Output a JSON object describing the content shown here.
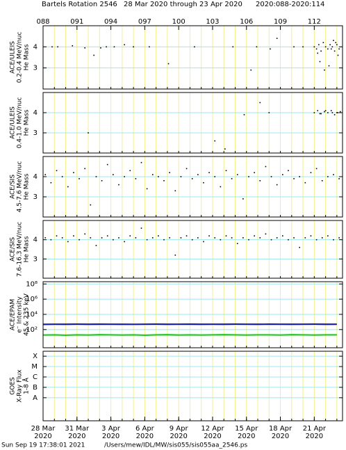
{
  "header": {
    "title": "Bartels Rotation 2546",
    "range": "28 Mar 2020 through 23 Apr 2020",
    "doy": "2020:088-2020:114"
  },
  "x_axis": {
    "xlim": [
      88,
      114.5
    ],
    "xticks": [
      88,
      89,
      90,
      91,
      92,
      93,
      94,
      95,
      96,
      97,
      98,
      99,
      100,
      101,
      102,
      103,
      104,
      105,
      106,
      107,
      108,
      109,
      110,
      111,
      112,
      113,
      114
    ],
    "top_labels": [
      {
        "value": 88,
        "label": "088"
      },
      {
        "value": 91,
        "label": "091"
      },
      {
        "value": 94,
        "label": "094"
      },
      {
        "value": 97,
        "label": "097"
      },
      {
        "value": 100,
        "label": "100"
      },
      {
        "value": 103,
        "label": "103"
      },
      {
        "value": 106,
        "label": "106"
      },
      {
        "value": 109,
        "label": "109"
      },
      {
        "value": 112,
        "label": "112"
      }
    ],
    "bottom_labels": [
      {
        "value": 88,
        "label": "28 Mar",
        "year": "2020"
      },
      {
        "value": 91,
        "label": "31 Mar",
        "year": "2020"
      },
      {
        "value": 94,
        "label": "3 Apr",
        "year": "2020"
      },
      {
        "value": 97,
        "label": "6 Apr",
        "year": "2020"
      },
      {
        "value": 100,
        "label": "9 Apr",
        "year": "2020"
      },
      {
        "value": 103,
        "label": "12 Apr",
        "year": "2020"
      },
      {
        "value": 106,
        "label": "15 Apr",
        "year": "2020"
      },
      {
        "value": 109,
        "label": "18 Apr",
        "year": "2020"
      },
      {
        "value": 112,
        "label": "21 Apr",
        "year": "2020"
      }
    ]
  },
  "chart_data": [
    {
      "type": "scatter",
      "ylabel": [
        "ACE/ULEIS",
        "0.2-0.4 MeV/nuc",
        "He Mass"
      ],
      "ylim": [
        2,
        5
      ],
      "yticks": [
        3,
        4
      ],
      "color": "#000000",
      "x": [
        88.8,
        89.3,
        90.6,
        91.7,
        92.5,
        93.1,
        93.6,
        94.3,
        95.2,
        96.0,
        97.4,
        99.1,
        101.4,
        104.8,
        106.4,
        106.9,
        108.1,
        108.7,
        110.2,
        111.0,
        112.0,
        112.2,
        112.4,
        112.6,
        112.8,
        113.0,
        113.2,
        113.4,
        113.6,
        113.8,
        114.0,
        114.2,
        112.5,
        112.9,
        113.3,
        113.7,
        114.1,
        112.3,
        113.5,
        113.9
      ],
      "values": [
        4.0,
        4.0,
        4.05,
        3.95,
        3.6,
        3.95,
        4.0,
        4.0,
        4.1,
        4.0,
        4.0,
        3.2,
        4.0,
        4.0,
        2.9,
        4.0,
        3.9,
        4.4,
        4.0,
        4.0,
        4.0,
        3.9,
        4.1,
        3.8,
        4.2,
        4.0,
        3.9,
        4.1,
        4.0,
        3.8,
        4.1,
        3.9,
        3.3,
        2.9,
        3.1,
        4.3,
        3.6,
        3.7,
        3.9,
        4.2
      ]
    },
    {
      "type": "scatter",
      "ylabel": [
        "ACE/ULEIS",
        "0.4-1.0 MeV/nuc",
        "He Mass"
      ],
      "ylim": [
        2,
        5
      ],
      "yticks": [
        3,
        4
      ],
      "color": "#000000",
      "x": [
        92.0,
        103.2,
        104.1,
        105.8,
        107.2,
        108.0,
        112.0,
        112.3,
        112.6,
        112.9,
        113.2,
        113.5,
        113.8,
        114.1,
        114.3,
        112.5,
        113.0,
        113.6,
        114.0
      ],
      "values": [
        3.0,
        2.6,
        2.2,
        3.9,
        4.5,
        4.0,
        4.0,
        4.1,
        3.95,
        4.05,
        4.0,
        4.1,
        3.9,
        4.0,
        4.05,
        3.95,
        4.1,
        4.0,
        4.0
      ]
    },
    {
      "type": "scatter",
      "ylabel": [
        "ACE/SIS",
        "4.5-7.6 MeV/nuc",
        "He Mass"
      ],
      "ylim": [
        2,
        5
      ],
      "yticks": [
        3,
        4
      ],
      "color": "#000000",
      "x": [
        88.2,
        88.7,
        89.2,
        89.7,
        90.2,
        90.7,
        91.2,
        91.7,
        92.2,
        92.7,
        93.2,
        93.7,
        94.2,
        94.7,
        95.2,
        95.7,
        96.2,
        96.7,
        97.2,
        97.7,
        98.2,
        98.7,
        99.2,
        99.7,
        100.2,
        100.7,
        101.2,
        101.7,
        102.2,
        102.7,
        103.2,
        103.7,
        104.2,
        104.7,
        105.2,
        105.7,
        106.2,
        106.7,
        107.2,
        107.7,
        108.2,
        108.7,
        109.2,
        109.7,
        110.2,
        110.7,
        111.2,
        111.7,
        112.2,
        112.7,
        113.2,
        113.7,
        114.2
      ],
      "values": [
        4.1,
        3.7,
        4.3,
        4.0,
        3.5,
        4.2,
        3.9,
        4.4,
        2.6,
        4.0,
        3.8,
        4.6,
        4.1,
        3.6,
        4.0,
        4.3,
        3.9,
        4.7,
        3.4,
        4.1,
        4.0,
        3.8,
        4.2,
        3.3,
        4.0,
        4.4,
        3.9,
        4.1,
        3.7,
        4.2,
        4.0,
        3.5,
        4.3,
        3.9,
        4.1,
        2.9,
        4.0,
        4.2,
        3.8,
        4.5,
        4.0,
        3.6,
        4.1,
        4.3,
        3.9,
        4.0,
        3.7,
        4.2,
        4.4,
        3.8,
        4.0,
        4.1,
        3.9
      ]
    },
    {
      "type": "scatter",
      "ylabel": [
        "ACE/SIS",
        "7.6-16.3 MeV/nuc",
        "He Mass"
      ],
      "ylim": [
        2,
        5
      ],
      "yticks": [
        3,
        4
      ],
      "color": "#000000",
      "x": [
        88.2,
        88.7,
        89.2,
        89.7,
        90.2,
        90.7,
        91.2,
        91.7,
        92.2,
        92.7,
        93.2,
        93.7,
        94.2,
        94.7,
        95.2,
        95.7,
        96.2,
        96.7,
        97.2,
        97.7,
        98.2,
        98.7,
        99.2,
        99.7,
        100.2,
        100.7,
        101.2,
        101.7,
        102.2,
        102.7,
        103.2,
        103.7,
        104.2,
        104.7,
        105.2,
        105.7,
        106.2,
        106.7,
        107.2,
        107.7,
        108.2,
        108.7,
        109.2,
        109.7,
        110.2,
        110.7,
        111.2,
        111.7,
        112.2,
        112.7,
        113.2,
        113.7,
        114.2
      ],
      "values": [
        4.1,
        4.0,
        4.2,
        4.1,
        3.9,
        4.2,
        4.0,
        4.3,
        4.1,
        3.7,
        4.1,
        4.2,
        4.0,
        4.1,
        3.9,
        4.2,
        4.1,
        4.6,
        4.0,
        4.1,
        4.2,
        4.0,
        4.1,
        3.2,
        4.1,
        4.2,
        4.0,
        4.1,
        3.9,
        4.2,
        4.1,
        4.0,
        4.2,
        4.1,
        3.8,
        4.1,
        4.0,
        4.2,
        4.1,
        4.3,
        4.0,
        4.1,
        4.2,
        4.0,
        4.1,
        3.6,
        4.1,
        4.2,
        4.0,
        4.1,
        4.2,
        4.0,
        4.1
      ]
    },
    {
      "type": "line",
      "ylabel": [
        "ACE/EPAM",
        "e⁻ Intensity",
        "45 & 235 keV"
      ],
      "log": true,
      "ylim": [
        0.4,
        200000000
      ],
      "yticks": [
        {
          "value": 100,
          "label": "10²"
        },
        {
          "value": 10000,
          "label": "10⁴"
        },
        {
          "value": 1000000,
          "label": "10⁶"
        },
        {
          "value": 100000000,
          "label": "10⁸"
        }
      ],
      "x": [
        88,
        89,
        90,
        91,
        92,
        93,
        94,
        95,
        96,
        97,
        98,
        99,
        100,
        101,
        102,
        103,
        104,
        105,
        106,
        107,
        108,
        109,
        110,
        111,
        112,
        113,
        114
      ],
      "series": [
        {
          "color": "#1c1ca0",
          "values": [
            480,
            500,
            490,
            510,
            495,
            505,
            500,
            490,
            485,
            500,
            510,
            495,
            500,
            505,
            490,
            500,
            495,
            510,
            500,
            490,
            505,
            500,
            495,
            500,
            510,
            490,
            500
          ]
        },
        {
          "color": "#22c822",
          "values": [
            19,
            20,
            18,
            20,
            19,
            21,
            20,
            19,
            20,
            18,
            20,
            21,
            19,
            20,
            19,
            20,
            21,
            20,
            19,
            20,
            20,
            19,
            21,
            20,
            19,
            20,
            20
          ]
        }
      ]
    },
    {
      "type": "line",
      "ylabel": [
        "GOES",
        "X-Ray Flux",
        "1-8 Å"
      ],
      "log": true,
      "ylim": [
        6e-11,
        0.0003
      ],
      "yticks": [
        {
          "value": 1e-08,
          "label": "A"
        },
        {
          "value": 1e-07,
          "label": "B"
        },
        {
          "value": 1e-06,
          "label": "C"
        },
        {
          "value": 1e-05,
          "label": "M"
        },
        {
          "value": 0.0001,
          "label": "X"
        }
      ]
    }
  ],
  "footer": {
    "stamp": "Sun Sep 19 17:38:01 2021",
    "file": "/Users/mew/IDL/MW/sis055/sis055aa_2546.ps"
  }
}
